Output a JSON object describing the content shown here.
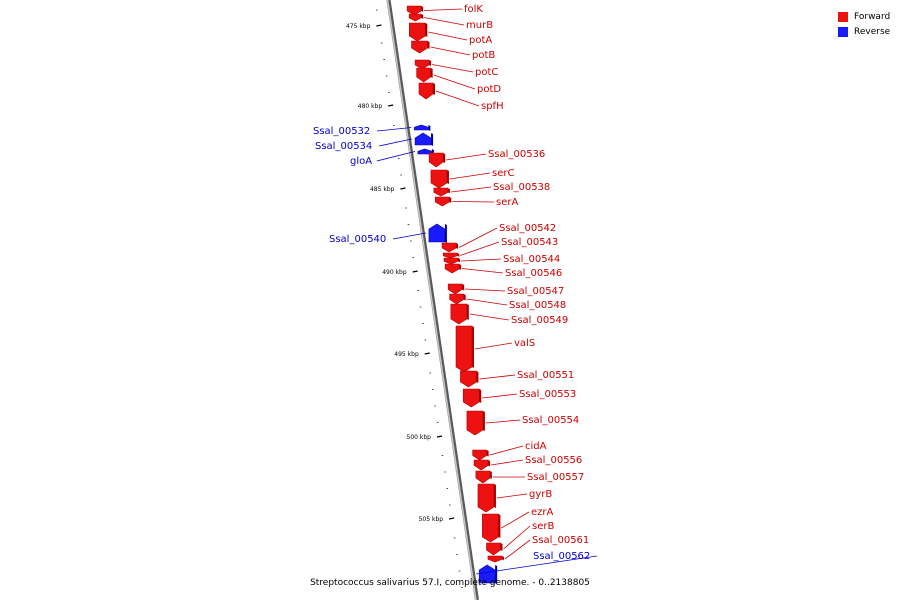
{
  "colors": {
    "forward": "#ee1111",
    "forward_label": "#cc0000",
    "reverse": "#1a1aff",
    "reverse_label": "#0000cc",
    "backbone": "#808080"
  },
  "legend": [
    {
      "label": "Forward",
      "strand": "forward"
    },
    {
      "label": "Reverse",
      "strand": "reverse"
    }
  ],
  "caption": "Streptococcus salivarius 57.I, complete genome. - 0..2138805",
  "ticks": [
    "475 kbp",
    "480 kbp",
    "485 kbp",
    "490 kbp",
    "495 kbp",
    "500 kbp",
    "505 kbp"
  ],
  "genes": [
    {
      "name": "folK",
      "strand": "forward"
    },
    {
      "name": "murB",
      "strand": "forward"
    },
    {
      "name": "potA",
      "strand": "forward"
    },
    {
      "name": "potB",
      "strand": "forward"
    },
    {
      "name": "potC",
      "strand": "forward"
    },
    {
      "name": "potD",
      "strand": "forward"
    },
    {
      "name": "spfH",
      "strand": "forward"
    },
    {
      "name": "Ssal_00532",
      "strand": "reverse"
    },
    {
      "name": "Ssal_00534",
      "strand": "reverse"
    },
    {
      "name": "gloA",
      "strand": "reverse"
    },
    {
      "name": "Ssal_00536",
      "strand": "forward"
    },
    {
      "name": "serC",
      "strand": "forward"
    },
    {
      "name": "Ssal_00538",
      "strand": "forward"
    },
    {
      "name": "serA",
      "strand": "forward"
    },
    {
      "name": "Ssal_00540",
      "strand": "reverse"
    },
    {
      "name": "Ssal_00542",
      "strand": "forward"
    },
    {
      "name": "Ssal_00543",
      "strand": "forward"
    },
    {
      "name": "Ssal_00544",
      "strand": "forward"
    },
    {
      "name": "Ssal_00546",
      "strand": "forward"
    },
    {
      "name": "Ssal_00547",
      "strand": "forward"
    },
    {
      "name": "Ssal_00548",
      "strand": "forward"
    },
    {
      "name": "Ssal_00549",
      "strand": "forward"
    },
    {
      "name": "valS",
      "strand": "forward"
    },
    {
      "name": "Ssal_00551",
      "strand": "forward"
    },
    {
      "name": "Ssal_00553",
      "strand": "forward"
    },
    {
      "name": "Ssal_00554",
      "strand": "forward"
    },
    {
      "name": "cidA",
      "strand": "forward"
    },
    {
      "name": "Ssal_00556",
      "strand": "forward"
    },
    {
      "name": "Ssal_00557",
      "strand": "forward"
    },
    {
      "name": "gyrB",
      "strand": "forward"
    },
    {
      "name": "ezrA",
      "strand": "forward"
    },
    {
      "name": "serB",
      "strand": "forward"
    },
    {
      "name": "Ssal_00561",
      "strand": "forward"
    },
    {
      "name": "Ssal_00562",
      "strand": "reverse"
    }
  ]
}
